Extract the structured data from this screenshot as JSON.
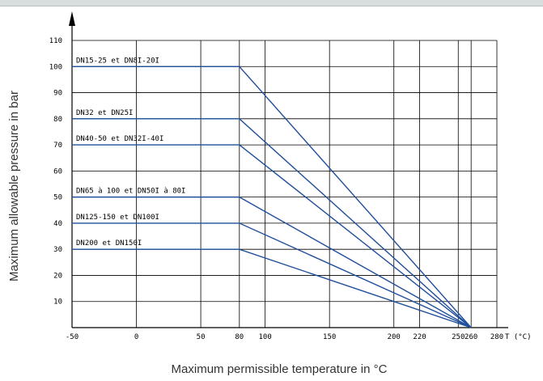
{
  "chart_data": {
    "type": "line",
    "xlabel": "Maximum permissible temperature in °C",
    "ylabel": "Maximum allowable pressure in bar",
    "x_axis_suffix": "T (°C)",
    "xlim": [
      -50,
      280
    ],
    "ylim": [
      0,
      110
    ],
    "x_ticks": [
      -50,
      0,
      50,
      80,
      100,
      150,
      200,
      220,
      250,
      260,
      280
    ],
    "x_tick_labels": [
      "-50",
      "0",
      "50",
      "80",
      "100",
      "150",
      "200",
      "220",
      "250",
      "260",
      "280"
    ],
    "y_ticks": [
      10,
      20,
      30,
      40,
      50,
      60,
      70,
      80,
      90,
      100,
      110
    ],
    "y_tick_labels": [
      "10",
      "20",
      "30",
      "40",
      "50",
      "60",
      "70",
      "80",
      "90",
      "100",
      "110"
    ],
    "grid": true,
    "line_color": "#1f4e9c",
    "series": [
      {
        "name": "DN15-25 et DN8I-20I",
        "x": [
          -50,
          80,
          260
        ],
        "y": [
          100,
          100,
          0
        ]
      },
      {
        "name": "DN32 et DN25I",
        "x": [
          -50,
          80,
          260
        ],
        "y": [
          80,
          80,
          0
        ]
      },
      {
        "name": "DN40-50 et DN32I-40I",
        "x": [
          -50,
          80,
          260
        ],
        "y": [
          70,
          70,
          0
        ]
      },
      {
        "name": "DN65 à 100 et DN50I à 80I",
        "x": [
          -50,
          80,
          260
        ],
        "y": [
          50,
          50,
          0
        ]
      },
      {
        "name": "DN125-150 et DN100I",
        "x": [
          -50,
          80,
          260
        ],
        "y": [
          40,
          40,
          0
        ]
      },
      {
        "name": "DN200 et DN150I",
        "x": [
          -50,
          80,
          260
        ],
        "y": [
          30,
          30,
          0
        ]
      }
    ]
  }
}
